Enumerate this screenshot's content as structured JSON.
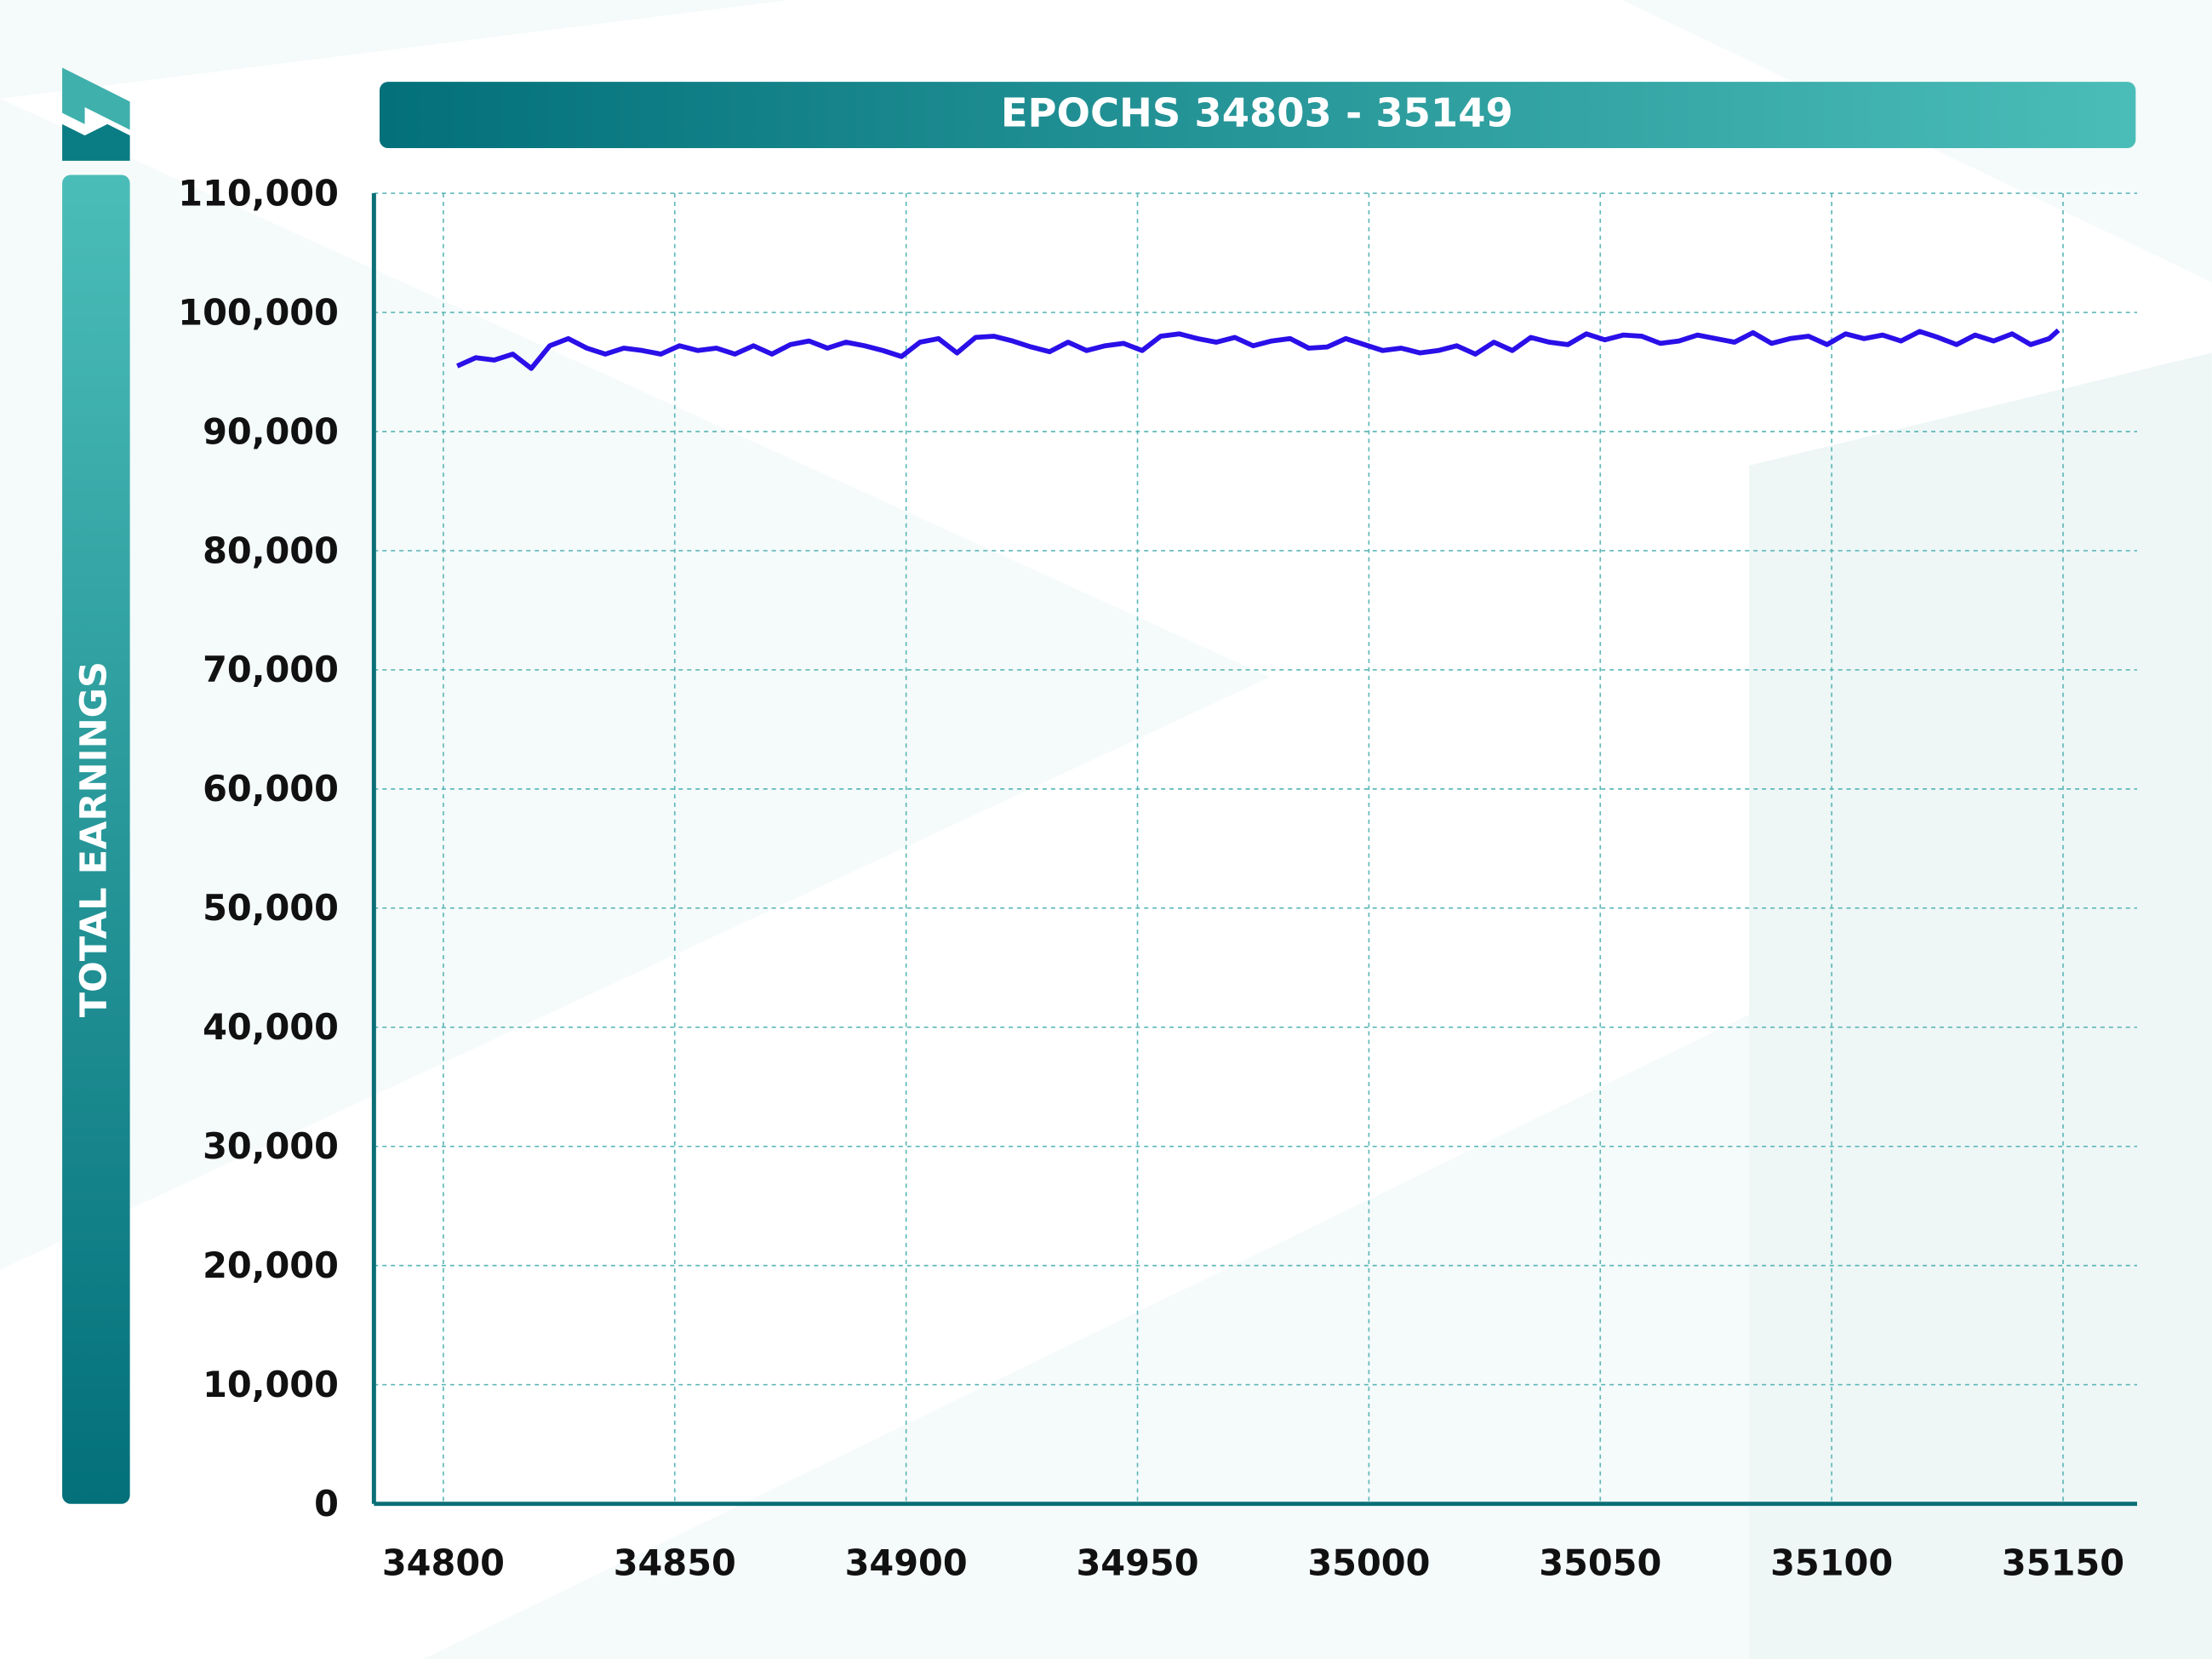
{
  "chart_data": {
    "type": "line",
    "title": "EPOCHS 34803 - 35149",
    "y_label": "TOTAL EARNINGS",
    "x": [
      34803,
      34807,
      34811,
      34815,
      34819,
      34823,
      34827,
      34831,
      34835,
      34839,
      34843,
      34847,
      34851,
      34855,
      34859,
      34863,
      34867,
      34871,
      34875,
      34879,
      34883,
      34887,
      34891,
      34895,
      34899,
      34903,
      34907,
      34911,
      34915,
      34919,
      34923,
      34927,
      34931,
      34935,
      34939,
      34943,
      34947,
      34951,
      34955,
      34959,
      34963,
      34967,
      34971,
      34975,
      34979,
      34983,
      34987,
      34991,
      34995,
      34999,
      35003,
      35007,
      35011,
      35015,
      35019,
      35023,
      35027,
      35031,
      35035,
      35039,
      35043,
      35047,
      35051,
      35055,
      35059,
      35063,
      35067,
      35071,
      35075,
      35079,
      35083,
      35087,
      35091,
      35095,
      35099,
      35103,
      35107,
      35111,
      35115,
      35119,
      35123,
      35127,
      35131,
      35135,
      35139,
      35143,
      35147,
      35149
    ],
    "values": [
      95500,
      96200,
      96000,
      96500,
      95300,
      97200,
      97800,
      97000,
      96500,
      97000,
      96800,
      96500,
      97200,
      96800,
      97000,
      96500,
      97200,
      96500,
      97300,
      97600,
      97000,
      97500,
      97200,
      96800,
      96300,
      97500,
      97800,
      96600,
      97900,
      98000,
      97600,
      97100,
      96700,
      97500,
      96800,
      97200,
      97400,
      96800,
      98000,
      98200,
      97800,
      97500,
      97900,
      97200,
      97600,
      97800,
      97000,
      97100,
      97800,
      97300,
      96800,
      97000,
      96600,
      96800,
      97200,
      96500,
      97500,
      96800,
      97900,
      97500,
      97300,
      98200,
      97700,
      98100,
      98000,
      97400,
      97600,
      98100,
      97800,
      97500,
      98300,
      97400,
      97800,
      98000,
      97300,
      98200,
      97800,
      98100,
      97600,
      98400,
      97900,
      97300,
      98100,
      97600,
      98200,
      97300,
      97800,
      98500
    ],
    "color": "#2a0fe8",
    "xlim": [
      34785,
      35166
    ],
    "xticks": [
      34800,
      34850,
      34900,
      34950,
      35000,
      35050,
      35100,
      35150
    ],
    "ylim": [
      0,
      110000
    ],
    "yticks": [
      0,
      {
        "value": 10000,
        "label": "10,000"
      },
      {
        "value": 20000,
        "label": "20,000"
      },
      {
        "value": 30000,
        "label": "30,000"
      },
      {
        "value": 40000,
        "label": "40,000"
      },
      {
        "value": 50000,
        "label": "50,000"
      },
      {
        "value": 60000,
        "label": "60,000"
      },
      {
        "value": 70000,
        "label": "70,000"
      },
      {
        "value": 80000,
        "label": "80,000"
      },
      {
        "value": 90000,
        "label": "90,000"
      },
      {
        "value": 100000,
        "label": "100,000"
      },
      {
        "value": 110000,
        "label": "110,000"
      }
    ],
    "grid": true
  }
}
